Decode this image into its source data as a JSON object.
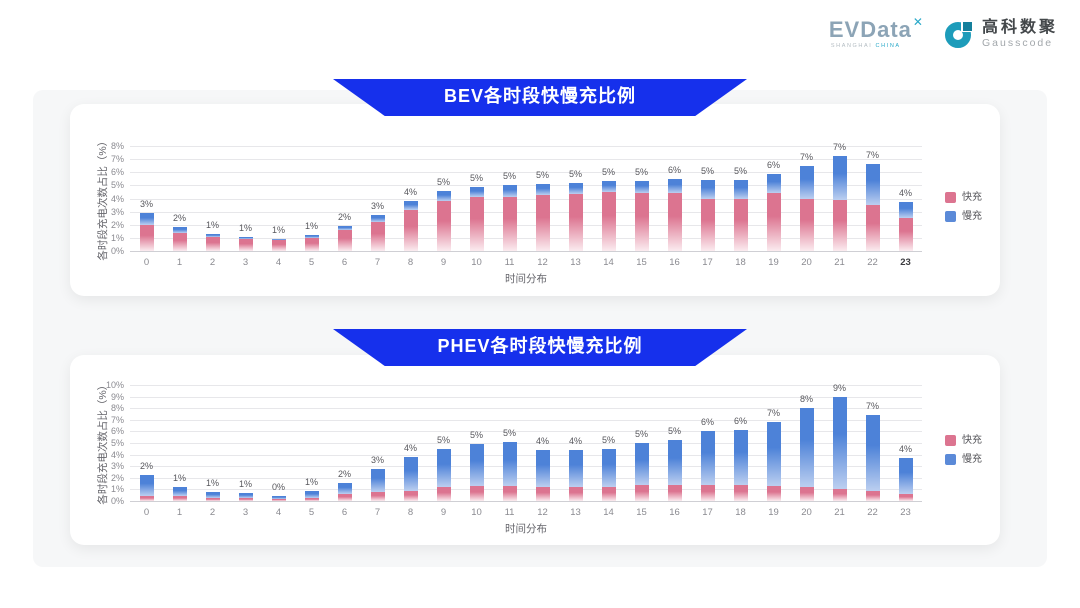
{
  "header": {
    "evdata": {
      "text": "EVData",
      "sup": "✕",
      "sub_left": "SHANGHAI",
      "sub_right": "CHINA"
    },
    "gausscode": {
      "cn": "高科数聚",
      "en": "Gausscode"
    }
  },
  "colors": {
    "banner": "#1630ec",
    "panel_bg": "#f6f7f8",
    "fast": "#dc7490",
    "fast_fade": "#fbecf0",
    "slow": "#4d82d8",
    "slow_fade": "#bccff0",
    "legend_fast": "#dc7490",
    "legend_slow": "#5b8ad8",
    "gausscode_teal": "#1d9cba"
  },
  "chart_data": [
    {
      "type": "bar",
      "stacked": true,
      "title": "BEV各时段快慢充比例",
      "ylabel": "各时段充电次数占比（%）",
      "xlabel": "时间分布",
      "ylim": [
        0,
        8
      ],
      "ytick_step": 1,
      "grid": true,
      "legend_position": "right",
      "categories": [
        "0",
        "1",
        "2",
        "3",
        "4",
        "5",
        "6",
        "7",
        "8",
        "9",
        "10",
        "11",
        "12",
        "13",
        "14",
        "15",
        "16",
        "17",
        "18",
        "19",
        "20",
        "21",
        "22",
        "23"
      ],
      "series": [
        {
          "name": "快充",
          "values": [
            2.0,
            1.4,
            1.05,
            0.9,
            0.85,
            1.0,
            1.6,
            2.2,
            3.1,
            3.8,
            4.1,
            4.15,
            4.3,
            4.35,
            4.5,
            4.4,
            4.45,
            4.0,
            4.0,
            4.4,
            4.0,
            3.9,
            3.5,
            2.5
          ]
        },
        {
          "name": "慢充",
          "values": [
            0.9,
            0.45,
            0.25,
            0.2,
            0.1,
            0.2,
            0.3,
            0.55,
            0.7,
            0.8,
            0.8,
            0.85,
            0.8,
            0.85,
            0.85,
            0.95,
            1.05,
            1.4,
            1.4,
            1.5,
            2.5,
            3.35,
            3.1,
            1.2
          ]
        }
      ],
      "bar_labels": [
        "3%",
        "2%",
        "1%",
        "1%",
        "1%",
        "1%",
        "2%",
        "3%",
        "4%",
        "5%",
        "5%",
        "5%",
        "5%",
        "5%",
        "5%",
        "5%",
        "6%",
        "5%",
        "5%",
        "6%",
        "7%",
        "7%",
        "7%",
        "4%"
      ],
      "emphasize_last_tick": true
    },
    {
      "type": "bar",
      "stacked": true,
      "title": "PHEV各时段快慢充比例",
      "ylabel": "各时段充电次数占比（%）",
      "xlabel": "时间分布",
      "ylim": [
        0,
        10
      ],
      "ytick_step": 1,
      "grid": true,
      "legend_position": "right",
      "categories": [
        "0",
        "1",
        "2",
        "3",
        "4",
        "5",
        "6",
        "7",
        "8",
        "9",
        "10",
        "11",
        "12",
        "13",
        "14",
        "15",
        "16",
        "17",
        "18",
        "19",
        "20",
        "21",
        "22",
        "23"
      ],
      "series": [
        {
          "name": "快充",
          "values": [
            0.45,
            0.4,
            0.3,
            0.25,
            0.2,
            0.3,
            0.6,
            0.8,
            0.9,
            1.2,
            1.3,
            1.3,
            1.2,
            1.2,
            1.2,
            1.4,
            1.35,
            1.4,
            1.4,
            1.3,
            1.2,
            1.0,
            0.9,
            0.6
          ]
        },
        {
          "name": "慢充",
          "values": [
            1.8,
            0.85,
            0.5,
            0.4,
            0.25,
            0.6,
            0.95,
            2.0,
            2.9,
            3.3,
            3.6,
            3.8,
            3.2,
            3.2,
            3.3,
            3.6,
            3.95,
            4.6,
            4.7,
            5.5,
            6.8,
            8.0,
            6.5,
            3.1
          ]
        }
      ],
      "bar_labels": [
        "2%",
        "1%",
        "1%",
        "1%",
        "0%",
        "1%",
        "2%",
        "3%",
        "4%",
        "5%",
        "5%",
        "5%",
        "4%",
        "4%",
        "5%",
        "5%",
        "5%",
        "6%",
        "6%",
        "7%",
        "8%",
        "9%",
        "7%",
        "4%"
      ],
      "emphasize_last_tick": false
    }
  ]
}
